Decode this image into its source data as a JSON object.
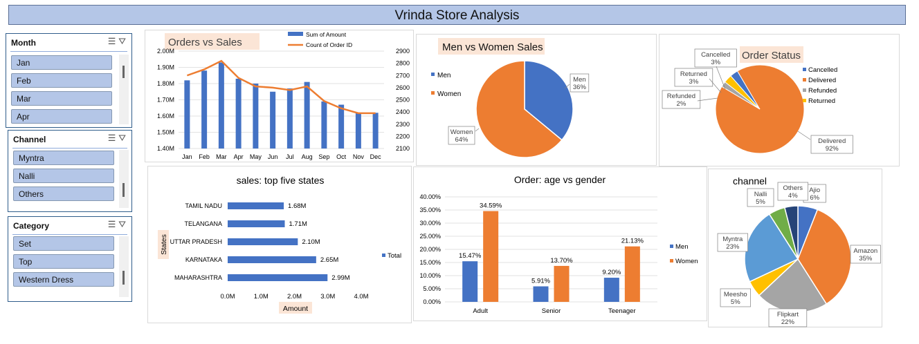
{
  "title": "Vrinda Store Analysis",
  "slicers": [
    {
      "name": "Month",
      "items": [
        "Jan",
        "Feb",
        "Mar",
        "Apr"
      ]
    },
    {
      "name": "Channel",
      "items": [
        "Myntra",
        "Nalli",
        "Others"
      ]
    },
    {
      "name": "Category",
      "items": [
        "Set",
        "Top",
        "Western Dress"
      ]
    }
  ],
  "chart_data": [
    {
      "type": "bar+line",
      "title": "Orders vs Sales",
      "categories": [
        "Jan",
        "Feb",
        "Mar",
        "Apr",
        "May",
        "Jun",
        "Jul",
        "Aug",
        "Sep",
        "Oct",
        "Nov",
        "Dec"
      ],
      "series": [
        {
          "name": "Sum of Amount",
          "type": "bar",
          "axis": "left",
          "values": [
            1.82,
            1.88,
            1.93,
            1.83,
            1.8,
            1.75,
            1.77,
            1.81,
            1.69,
            1.67,
            1.62,
            1.62
          ]
        },
        {
          "name": "Count of Order ID",
          "type": "line",
          "axis": "right",
          "values": [
            2700,
            2750,
            2820,
            2680,
            2610,
            2600,
            2580,
            2610,
            2490,
            2430,
            2390,
            2390
          ]
        }
      ],
      "y_left_ticks": [
        "2.00M",
        "1.90M",
        "1.80M",
        "1.70M",
        "1.60M",
        "1.50M",
        "1.40M"
      ],
      "y_right_ticks": [
        "2900",
        "2800",
        "2700",
        "2600",
        "2500",
        "2400",
        "2300",
        "2200",
        "2100"
      ],
      "ylim_left": [
        1.4,
        2.0
      ],
      "ylim_right": [
        2100,
        2900
      ],
      "colors": {
        "bar": "#4472c4",
        "line": "#ed7d31"
      }
    },
    {
      "type": "pie",
      "title": "Men vs Women Sales",
      "labels": [
        "Men",
        "Women"
      ],
      "values": [
        36,
        64
      ],
      "data_labels": [
        "36%",
        "64%"
      ],
      "colors": [
        "#4472c4",
        "#ed7d31"
      ]
    },
    {
      "type": "pie",
      "title": "Order Status",
      "labels": [
        "Cancelled",
        "Delivered",
        "Refunded",
        "Returned"
      ],
      "values": [
        3,
        92,
        2,
        3
      ],
      "data_labels": [
        "3%",
        "92%",
        "2%",
        "3%"
      ],
      "colors": [
        "#4472c4",
        "#ed7d31",
        "#a5a5a5",
        "#ffc000"
      ]
    },
    {
      "type": "bar",
      "orientation": "horizontal",
      "title": "sales: top five states",
      "categories": [
        "TAMIL NADU",
        "TELANGANA",
        "UTTAR PRADESH",
        "KARNATAKA",
        "MAHARASHTRA"
      ],
      "values": [
        1.68,
        1.71,
        2.1,
        2.65,
        2.99
      ],
      "data_labels": [
        "1.68M",
        "1.71M",
        "2.10M",
        "2.65M",
        "2.99M"
      ],
      "x_ticks": [
        "0.0M",
        "1.0M",
        "2.0M",
        "3.0M",
        "4.0M"
      ],
      "xlim": [
        0,
        4
      ],
      "xlabel": "Amount",
      "ylabel": "States",
      "legend": "Total",
      "colors": {
        "bar": "#4472c4"
      }
    },
    {
      "type": "bar",
      "title": "Order: age vs gender",
      "categories": [
        "Adult",
        "Senior",
        "Teenager"
      ],
      "series": [
        {
          "name": "Men",
          "values": [
            15.47,
            5.91,
            9.2
          ],
          "data_labels": [
            "15.47%",
            "5.91%",
            "9.20%"
          ]
        },
        {
          "name": "Women",
          "values": [
            34.59,
            13.7,
            21.13
          ],
          "data_labels": [
            "34.59%",
            "13.70%",
            "21.13%"
          ]
        }
      ],
      "y_ticks": [
        "40.00%",
        "35.00%",
        "30.00%",
        "25.00%",
        "20.00%",
        "15.00%",
        "10.00%",
        "5.00%",
        "0.00%"
      ],
      "ylim": [
        0,
        40
      ],
      "colors": [
        "#4472c4",
        "#ed7d31"
      ]
    },
    {
      "type": "pie",
      "title": "channel",
      "labels": [
        "Ajio",
        "Amazon",
        "Flipkart",
        "Meesho",
        "Myntra",
        "Nalli",
        "Others"
      ],
      "values": [
        6,
        35,
        22,
        5,
        23,
        5,
        4
      ],
      "data_labels": [
        "6%",
        "35%",
        "22%",
        "5%",
        "23%",
        "5%",
        "4%"
      ],
      "colors": [
        "#4472c4",
        "#ed7d31",
        "#a5a5a5",
        "#ffc000",
        "#5b9bd5",
        "#70ad47",
        "#264478"
      ]
    }
  ]
}
